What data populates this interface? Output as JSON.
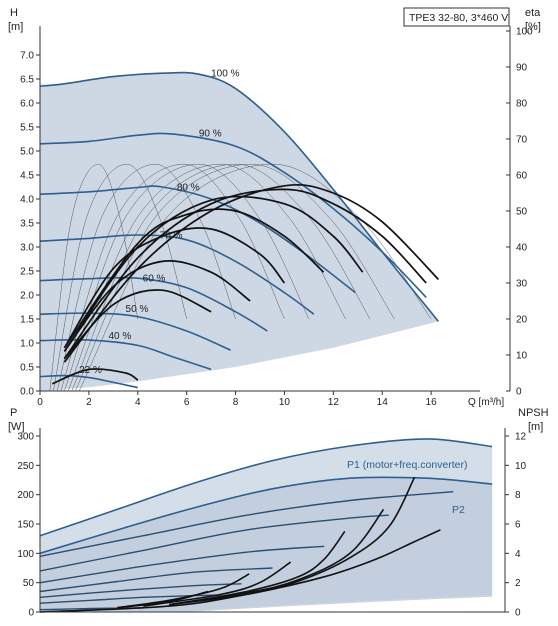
{
  "top": {
    "title_box": "TPE3 32-80, 3*460 V",
    "y_left_label": "H",
    "y_left_unit": "[m]",
    "y_right_label": "eta",
    "y_right_unit": "[%]",
    "x_label": "Q [m³/h]",
    "x_ticks": [
      "0",
      "2",
      "4",
      "6",
      "8",
      "10",
      "12",
      "14",
      "16"
    ],
    "y_left_ticks": [
      "0.0",
      "0.5",
      "1.0",
      "1.5",
      "2.0",
      "2.5",
      "3.0",
      "3.5",
      "4.0",
      "4.5",
      "5.0",
      "5.5",
      "6.0",
      "6.5",
      "7.0"
    ],
    "y_right_ticks": [
      "0",
      "10",
      "20",
      "30",
      "40",
      "50",
      "60",
      "70",
      "80",
      "90",
      "100"
    ],
    "speed_labels": [
      "100 %",
      "90 %",
      "80 %",
      "70 %",
      "60 %",
      "50 %",
      "40 %",
      "22 %"
    ]
  },
  "bottom": {
    "y_left_label": "P",
    "y_left_unit": "[W]",
    "y_right_label": "NPSH",
    "y_right_unit": "[m]",
    "y_left_ticks": [
      "0",
      "50",
      "100",
      "150",
      "200",
      "250",
      "300"
    ],
    "y_right_ticks": [
      "0",
      "2",
      "4",
      "6",
      "8",
      "10",
      "12"
    ],
    "p1_label": "P1 (motor+freq.converter)",
    "p2_label": "P2"
  },
  "colors": {
    "envelope_fill": "#cdd8e4",
    "envelope_light": "#e6eef6",
    "speed_curve": "#2e5f8f",
    "eta_curve": "#111111",
    "thin_eta": "#555555",
    "axis": "#333333"
  },
  "chart_data": [
    {
      "type": "line",
      "xlabel": "Q [m³/h]",
      "ylabel": "H [m]",
      "y2label": "eta [%]",
      "xlim": [
        0,
        18
      ],
      "ylim": [
        0,
        7.5
      ],
      "y2lim": [
        0,
        100
      ],
      "series": [
        {
          "name": "100 %",
          "q": [
            0,
            1,
            3,
            5,
            6.5,
            8,
            10,
            12,
            14,
            16.3
          ],
          "h": [
            6.35,
            6.4,
            6.55,
            6.62,
            6.6,
            6.3,
            5.4,
            4.2,
            2.9,
            1.45
          ]
        },
        {
          "name": "90 %",
          "q": [
            0,
            2,
            4,
            5.5,
            8,
            10,
            12,
            14,
            15.8
          ],
          "h": [
            5.15,
            5.2,
            5.33,
            5.35,
            5.1,
            4.55,
            3.8,
            2.9,
            1.95
          ]
        },
        {
          "name": "80 %",
          "q": [
            0,
            2,
            4,
            5,
            7,
            9,
            11,
            12.9
          ],
          "h": [
            4.1,
            4.15,
            4.24,
            4.25,
            4.0,
            3.5,
            2.8,
            2.05
          ]
        },
        {
          "name": "70 %",
          "q": [
            0,
            2,
            4,
            6,
            8,
            10,
            11.2
          ],
          "h": [
            3.12,
            3.18,
            3.25,
            3.15,
            2.7,
            2.05,
            1.6
          ]
        },
        {
          "name": "60 %",
          "q": [
            0,
            2,
            4,
            6,
            8,
            9.3
          ],
          "h": [
            2.3,
            2.34,
            2.35,
            2.15,
            1.65,
            1.25
          ]
        },
        {
          "name": "50 %",
          "q": [
            0,
            2,
            4,
            6,
            7.8
          ],
          "h": [
            1.6,
            1.62,
            1.55,
            1.25,
            0.85
          ]
        },
        {
          "name": "40 %",
          "q": [
            0,
            2,
            4,
            5.5,
            7
          ],
          "h": [
            1.05,
            1.06,
            0.95,
            0.7,
            0.45
          ]
        },
        {
          "name": "22 %",
          "q": [
            0,
            1,
            2,
            3,
            4
          ],
          "h": [
            0.3,
            0.32,
            0.28,
            0.18,
            0.07
          ]
        }
      ],
      "envelope": {
        "q": [
          0,
          1,
          3,
          5,
          6.5,
          8,
          10,
          12,
          14,
          16.3,
          16.3,
          12,
          8,
          4,
          2,
          0
        ],
        "h": [
          6.35,
          6.4,
          6.55,
          6.62,
          6.6,
          6.3,
          5.4,
          4.2,
          2.9,
          1.45,
          1.45,
          0.9,
          0.5,
          0.2,
          0.08,
          0
        ]
      },
      "eta_series": [
        {
          "name": "100 %",
          "q": [
            1,
            4,
            7,
            10,
            12,
            14,
            16.3
          ],
          "eta": [
            8,
            34,
            50,
            57,
            55,
            47,
            31
          ]
        },
        {
          "name": "90 %",
          "q": [
            1,
            4,
            7,
            10,
            12,
            14,
            15.8
          ],
          "eta": [
            9,
            37,
            52,
            56,
            52,
            43,
            30
          ]
        },
        {
          "name": "80 %",
          "q": [
            1,
            4,
            7,
            10,
            12,
            13.2
          ],
          "eta": [
            11,
            40,
            53,
            52,
            43,
            33
          ]
        },
        {
          "name": "70 %",
          "q": [
            1,
            4,
            6,
            8,
            10,
            11.6
          ],
          "eta": [
            12,
            41,
            49,
            50,
            43,
            33
          ]
        },
        {
          "name": "60 %",
          "q": [
            1,
            3,
            5,
            7,
            9,
            10
          ],
          "eta": [
            12,
            34,
            43,
            45,
            38,
            30
          ]
        },
        {
          "name": "50 %",
          "q": [
            1,
            3,
            5,
            7,
            8.6
          ],
          "eta": [
            11,
            29,
            36,
            33,
            25
          ]
        },
        {
          "name": "40 %",
          "q": [
            1,
            3,
            5,
            7
          ],
          "eta": [
            9,
            24,
            28,
            22
          ]
        },
        {
          "name": "22 %",
          "q": [
            0.5,
            2,
            3.5,
            4
          ],
          "eta": [
            2,
            6,
            5,
            3
          ]
        }
      ]
    },
    {
      "type": "line",
      "xlabel": "Q [m³/h]",
      "ylabel": "P [W]",
      "y2label": "NPSH [m]",
      "xlim": [
        0,
        18
      ],
      "ylim": [
        0,
        300
      ],
      "y2lim": [
        0,
        12
      ],
      "series": [
        {
          "name": "P1 (motor+freq.converter)",
          "q": [
            0,
            3,
            6,
            9,
            12,
            15,
            17.5
          ],
          "p": [
            130,
            175,
            220,
            258,
            283,
            295,
            282
          ]
        },
        {
          "name": "P2",
          "q": [
            0,
            3,
            6,
            9,
            12,
            15,
            17.5
          ],
          "p": [
            100,
            140,
            178,
            210,
            228,
            228,
            218
          ]
        },
        {
          "name": "90 %",
          "q": [
            0,
            4,
            8,
            12,
            16
          ],
          "p": [
            95,
            130,
            165,
            190,
            205
          ]
        },
        {
          "name": "80 %",
          "q": [
            0,
            4,
            8,
            12,
            13.5
          ],
          "p": [
            70,
            105,
            140,
            160,
            165
          ]
        },
        {
          "name": "70 %",
          "q": [
            0,
            4,
            8,
            11
          ],
          "p": [
            50,
            78,
            102,
            112
          ]
        },
        {
          "name": "60 %",
          "q": [
            0,
            3,
            6,
            9
          ],
          "p": [
            35,
            52,
            68,
            75
          ]
        },
        {
          "name": "50 %",
          "q": [
            0,
            3,
            6,
            7.8
          ],
          "p": [
            25,
            36,
            45,
            48
          ]
        },
        {
          "name": "40 %",
          "q": [
            0,
            2,
            4,
            6,
            7
          ],
          "p": [
            15,
            20,
            25,
            28,
            29
          ]
        },
        {
          "name": "22 %",
          "q": [
            0,
            2,
            4
          ],
          "p": [
            4,
            6,
            7
          ]
        }
      ],
      "npsh_series": [
        {
          "q": [
            0,
            5,
            8,
            11,
            13,
            14.5,
            15.5
          ],
          "npsh": [
            0,
            0.4,
            1.2,
            2.4,
            3.6,
            4.8,
            5.6
          ]
        },
        {
          "q": [
            5,
            8,
            10,
            12,
            13.5,
            14.5
          ],
          "npsh": [
            0.5,
            1.2,
            2.1,
            3.7,
            5.8,
            9.2
          ]
        },
        {
          "q": [
            5,
            8,
            10,
            12,
            13.3
          ],
          "npsh": [
            0.5,
            1.3,
            2.2,
            4.0,
            7.0
          ]
        },
        {
          "q": [
            5,
            8,
            10,
            11,
            11.8
          ],
          "npsh": [
            0.5,
            1.4,
            2.4,
            3.6,
            5.5
          ]
        },
        {
          "q": [
            4,
            7,
            8.5,
            9.7
          ],
          "npsh": [
            0.4,
            1.2,
            2.0,
            3.4
          ]
        },
        {
          "q": [
            3,
            5,
            7,
            8.1
          ],
          "npsh": [
            0.3,
            0.8,
            1.6,
            2.6
          ]
        },
        {
          "q": [
            3,
            5,
            6.5
          ],
          "npsh": [
            0.3,
            0.7,
            1.4
          ]
        }
      ]
    }
  ]
}
